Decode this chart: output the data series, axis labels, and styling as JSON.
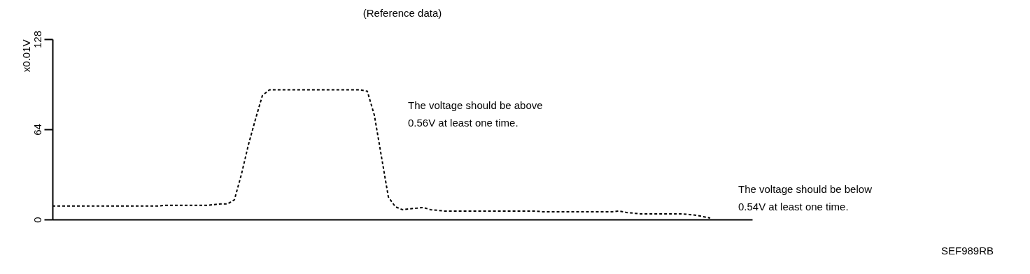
{
  "chart_data": {
    "type": "line",
    "title": "(Reference data)",
    "ylabel": "x0.01V",
    "categories": [
      null,
      null,
      null,
      null,
      null,
      null,
      null,
      null,
      null,
      null,
      null,
      null,
      null,
      null,
      null,
      null,
      null,
      null,
      null,
      null,
      null,
      null,
      null,
      null,
      null,
      null,
      null,
      null,
      null,
      null,
      null,
      null,
      null,
      null,
      null,
      null,
      null,
      null,
      null,
      null,
      null,
      null,
      null,
      null,
      null,
      null,
      null,
      null,
      null,
      null,
      null,
      null,
      null,
      null,
      null,
      null,
      null,
      null,
      null,
      null,
      null,
      null,
      null,
      null,
      null,
      null,
      null,
      null,
      null,
      null,
      null,
      null,
      null,
      null,
      null,
      null,
      null,
      null,
      null,
      null,
      null,
      null,
      null,
      null,
      null,
      null,
      null,
      null,
      null,
      null,
      null,
      null,
      null,
      null,
      null
    ],
    "series": [
      {
        "color": "#000000",
        "values": [
          9.5,
          9.5,
          9.5,
          9.5,
          9.5,
          9.5,
          9.5,
          9.5,
          9.5,
          9.5,
          9.5,
          9.5,
          9.5,
          9.5,
          9.5,
          9.5,
          10,
          10,
          10,
          10,
          10,
          10,
          10,
          10.5,
          11,
          11,
          14,
          32,
          53,
          71,
          88,
          92,
          92,
          92,
          92,
          92,
          92,
          92,
          92,
          92,
          92,
          92,
          92,
          92,
          92,
          91,
          74,
          45,
          16,
          9,
          7,
          7.5,
          8,
          8.5,
          7,
          6.5,
          6,
          6,
          6,
          6,
          6,
          6,
          6,
          6,
          6,
          6,
          6,
          6,
          6,
          6,
          5.5,
          5.5,
          5.5,
          5.5,
          5.5,
          5.5,
          5.5,
          5.5,
          5.5,
          5.5,
          5.5,
          6,
          5,
          4.5,
          4,
          4,
          4,
          4,
          4,
          4,
          4,
          3.5,
          3,
          2,
          1
        ]
      }
    ],
    "ylim": [
      0,
      128
    ],
    "yticks": [
      0,
      64,
      128
    ],
    "grid": false,
    "tick_labels": "y",
    "marker": "none",
    "line_style": "dotted",
    "annotations": [
      "The voltage should be above\n0.56V at least one time.",
      "The voltage should be below\n0.54V at least one time.",
      "SEF989RB"
    ]
  }
}
